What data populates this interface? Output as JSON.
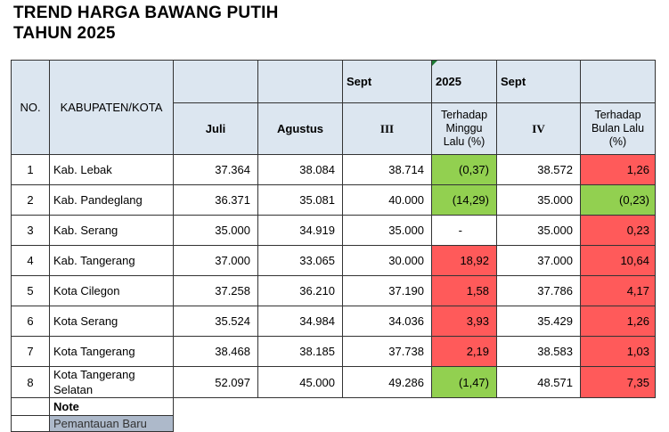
{
  "title": {
    "line1": "TREND HARGA BAWANG PUTIH",
    "line2": "TAHUN 2025"
  },
  "header": {
    "no": "NO.",
    "kabupaten": "KABUPATEN/KOTA",
    "sept_a": "Sept",
    "year": "2025",
    "sept_b": "Sept",
    "juli": "Juli",
    "agustus": "Agustus",
    "week3": "III",
    "terhadap_minggu": "Terhadap Minggu Lalu (%)",
    "week4": "IV",
    "terhadap_bulan": "Terhadap Bulan Lalu (%)"
  },
  "rows": [
    {
      "no": "1",
      "name": "Kab. Lebak",
      "juli": "37.364",
      "agustus": "38.084",
      "iii": "38.714",
      "minggu": "(0,37)",
      "iv": "38.572",
      "bulan": "1,26"
    },
    {
      "no": "2",
      "name": "Kab. Pandeglang",
      "juli": "36.371",
      "agustus": "35.081",
      "iii": "40.000",
      "minggu": "(14,29)",
      "iv": "35.000",
      "bulan": "(0,23)"
    },
    {
      "no": "3",
      "name": "Kab. Serang",
      "juli": "35.000",
      "agustus": "34.919",
      "iii": "35.000",
      "minggu": "-",
      "iv": "35.000",
      "bulan": "0,23"
    },
    {
      "no": "4",
      "name": "Kab. Tangerang",
      "juli": "37.000",
      "agustus": "33.065",
      "iii": "30.000",
      "minggu": "18,92",
      "iv": "37.000",
      "bulan": "10,64"
    },
    {
      "no": "5",
      "name": "Kota Cilegon",
      "juli": "37.258",
      "agustus": "36.210",
      "iii": "37.190",
      "minggu": "1,58",
      "iv": "37.786",
      "bulan": "4,17"
    },
    {
      "no": "6",
      "name": "Kota Serang",
      "juli": "35.524",
      "agustus": "34.984",
      "iii": "34.036",
      "minggu": "3,93",
      "iv": "35.429",
      "bulan": "1,26"
    },
    {
      "no": "7",
      "name": "Kota Tangerang",
      "juli": "38.468",
      "agustus": "38.185",
      "iii": "37.738",
      "minggu": "2,19",
      "iv": "38.583",
      "bulan": "1,03"
    },
    {
      "no": "8",
      "name": "Kota Tangerang Selatan",
      "juli": "52.097",
      "agustus": "45.000",
      "iii": "49.286",
      "minggu": "(1,47)",
      "iv": "48.571",
      "bulan": "7,35"
    }
  ],
  "note": {
    "label": "Note",
    "legend": "Pemantauan Baru"
  },
  "colors": {
    "up": "#ff5a5a",
    "down": "#92d050",
    "header": "#dce6f0",
    "new": "#adb9ca"
  }
}
